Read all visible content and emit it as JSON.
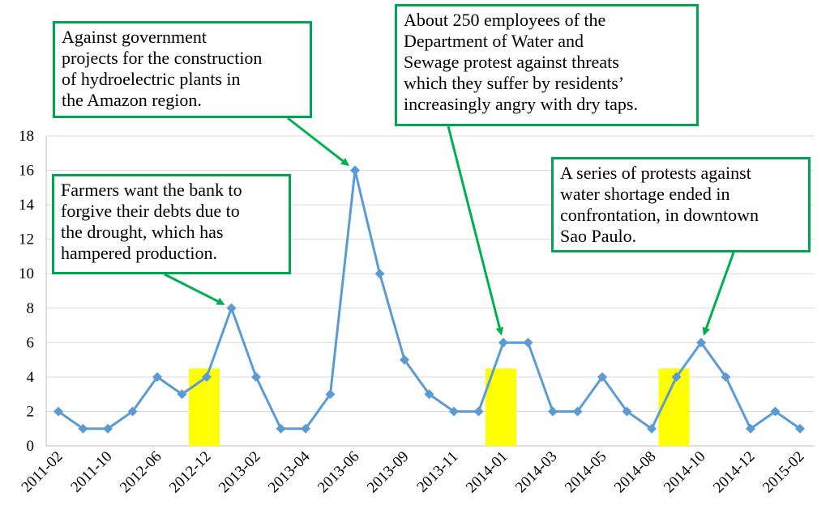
{
  "chart_data": {
    "type": "line",
    "title": "",
    "xlabel": "",
    "ylabel": "",
    "ylim": [
      0,
      18
    ],
    "yticks": [
      "0",
      "2",
      "4",
      "6",
      "8",
      "10",
      "12",
      "14",
      "16",
      "18"
    ],
    "x_tick_labels": [
      "2011-02",
      "2011-10",
      "2012-06",
      "2012-12",
      "2013-02",
      "2013-04",
      "2013-06",
      "2013-09",
      "2013-11",
      "2014-01",
      "2014-03",
      "2014-05",
      "2014-08",
      "2014-10",
      "2014-12",
      "2015-02"
    ],
    "grid": "horizontal",
    "colors": {
      "line": "#5b9bd5",
      "highlight": "#ffff00",
      "arrow": "#00b050",
      "box_border": "#00a550",
      "gridline": "#d9d9d9"
    },
    "series": [
      {
        "values": [
          2,
          1,
          1,
          2,
          4,
          3,
          4,
          8,
          4,
          1,
          1,
          3,
          16,
          10,
          5,
          3,
          2,
          2,
          6,
          6,
          2,
          2,
          4,
          2,
          1,
          4,
          6,
          4,
          1,
          2,
          1
        ]
      }
    ],
    "highlight_points": [
      6,
      18,
      25
    ],
    "highlight_value": 4.5
  },
  "annotations": [
    {
      "text": "Against government\nprojects for the construction\nof hydroelectric plants in\nthe Amazon region.",
      "target_point": 12
    },
    {
      "text": "About 250 employees of the\nDepartment of Water and\nSewage protest against threats\nwhich they suffer by residents’\nincreasingly angry with dry taps.",
      "target_point": 18
    },
    {
      "text": "Farmers want the bank to\nforgive  their debts due to\nthe drought, which has\nhampered production.",
      "target_point": 7
    },
    {
      "text": "A series of protests against\nwater shortage ended in\nconfrontation, in downtown\nSao Paulo.",
      "target_point": 26
    }
  ]
}
